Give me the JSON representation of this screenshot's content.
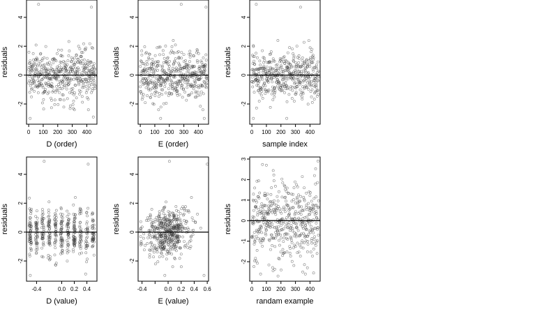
{
  "chart_data": [
    {
      "type": "scatter",
      "xlabel": "D (order)",
      "ylabel": "residuals",
      "xlim": [
        -15,
        470
      ],
      "ylim": [
        -3.4,
        5.2
      ],
      "xticks": [
        0,
        100,
        200,
        300,
        400
      ],
      "yticks": [
        -2,
        0,
        2,
        4
      ],
      "hline": 0,
      "points_n": 460,
      "x_kind": "index",
      "y_kind": "resid",
      "highlights": [
        [
          68,
          4.9
        ],
        [
          432,
          4.7
        ],
        [
          10,
          -3.0
        ],
        [
          445,
          -2.9
        ]
      ]
    },
    {
      "type": "scatter",
      "xlabel": "E (order)",
      "ylabel": "residuals",
      "xlim": [
        -15,
        470
      ],
      "ylim": [
        -3.4,
        5.2
      ],
      "xticks": [
        0,
        100,
        200,
        300,
        400
      ],
      "yticks": [
        -2,
        0,
        2,
        4
      ],
      "hline": 0,
      "points_n": 460,
      "x_kind": "index",
      "y_kind": "resid",
      "highlights": [
        [
          282,
          4.9
        ],
        [
          452,
          4.7
        ],
        [
          140,
          -3.0
        ],
        [
          440,
          -3.0
        ]
      ]
    },
    {
      "type": "scatter",
      "xlabel": "sample index",
      "ylabel": "residuals",
      "xlim": [
        -15,
        470
      ],
      "ylim": [
        -3.4,
        5.2
      ],
      "xticks": [
        0,
        100,
        200,
        300,
        400
      ],
      "yticks": [
        -2,
        0,
        2,
        4
      ],
      "hline": 0,
      "points_n": 460,
      "x_kind": "index",
      "y_kind": "resid",
      "highlights": [
        [
          30,
          4.9
        ],
        [
          335,
          4.7
        ],
        [
          10,
          -3.0
        ],
        [
          240,
          -3.0
        ]
      ]
    },
    {
      "type": "scatter",
      "xlabel": "D (value)",
      "ylabel": "residuals",
      "xlim": [
        -0.56,
        0.56
      ],
      "ylim": [
        -3.4,
        5.2
      ],
      "xticks": [
        -0.4,
        0.0,
        0.2,
        0.4
      ],
      "xticklabels": [
        "-0.4",
        "0.0",
        "0.2",
        "0.4"
      ],
      "yticks": [
        -2,
        0,
        2,
        4
      ],
      "hline": 0,
      "points_n": 460,
      "x_kind": "dvalue",
      "y_kind": "resid",
      "highlights": [
        [
          -0.28,
          4.9
        ],
        [
          0.42,
          4.7
        ],
        [
          -0.5,
          -3.0
        ],
        [
          0.38,
          -2.9
        ]
      ]
    },
    {
      "type": "scatter",
      "xlabel": "E (value)",
      "ylabel": "residuals",
      "xlim": [
        -0.46,
        0.62
      ],
      "ylim": [
        -3.4,
        5.2
      ],
      "xticks": [
        -0.4,
        -0.2,
        0.0,
        0.2,
        0.4,
        0.6
      ],
      "xticklabels": [
        "-0.4",
        "",
        "0.0",
        "0.2",
        "0.4",
        "0.6"
      ],
      "yticks": [
        -2,
        0,
        2,
        4
      ],
      "hline": 0,
      "points_n": 460,
      "x_kind": "evalue",
      "y_kind": "resid",
      "highlights": [
        [
          0.02,
          4.9
        ],
        [
          0.6,
          4.7
        ],
        [
          -0.05,
          -3.0
        ],
        [
          0.55,
          -3.0
        ]
      ]
    },
    {
      "type": "scatter",
      "xlabel": "randam example",
      "ylabel": "residuals",
      "xlim": [
        -15,
        470
      ],
      "ylim": [
        -2.95,
        3.1
      ],
      "xticks": [
        0,
        100,
        200,
        300,
        400
      ],
      "yticks": [
        -2,
        -1,
        0,
        1,
        2,
        3
      ],
      "hline": 0,
      "points_n": 460,
      "x_kind": "index",
      "y_kind": "normal",
      "highlights": [
        [
          180,
          -2.7
        ],
        [
          350,
          -2.5
        ],
        [
          455,
          2.9
        ],
        [
          100,
          2.7
        ]
      ]
    }
  ]
}
